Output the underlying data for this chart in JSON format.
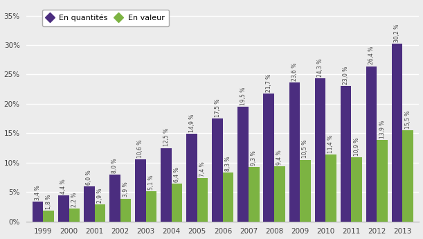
{
  "years": [
    "1999",
    "2000",
    "2001",
    "2002",
    "2003",
    "2004",
    "2005",
    "2006",
    "2007",
    "2008",
    "2009",
    "2010",
    "2011",
    "2012",
    "2013"
  ],
  "quantites": [
    3.4,
    4.4,
    6.0,
    8.0,
    10.6,
    12.5,
    14.9,
    17.5,
    19.5,
    21.7,
    23.6,
    24.3,
    23.0,
    26.4,
    30.2
  ],
  "valeur": [
    1.8,
    2.2,
    2.9,
    3.9,
    5.1,
    6.4,
    7.4,
    8.3,
    9.3,
    9.4,
    10.5,
    11.4,
    10.9,
    13.9,
    15.5
  ],
  "quantites_labels": [
    "3,4 %",
    "4,4 %",
    "6,0 %",
    "8,0 %",
    "10,6 %",
    "12,5 %",
    "14,9 %",
    "17,5 %",
    "19,5 %",
    "21,7 %",
    "23,6 %",
    "24,3 %",
    "23,0 %",
    "26,4 %",
    "30,2 %"
  ],
  "valeur_labels": [
    "1,8 %",
    "2,2 %",
    "2,9 %",
    "3,9 %",
    "5,1 %",
    "6,4 %",
    "7,4 %",
    "8,3 %",
    "9,3 %",
    "9,4 %",
    "10,5 %",
    "11,4 %",
    "10,9 %",
    "13,9 %",
    "15,5 %"
  ],
  "color_quantites": "#4B2D7F",
  "color_valeur": "#7CB342",
  "ylim": [
    0,
    37
  ],
  "yticks": [
    0,
    5,
    10,
    15,
    20,
    25,
    30,
    35
  ],
  "ytick_labels": [
    "0%",
    "5%",
    "10%",
    "15%",
    "20%",
    "25%",
    "30%",
    "35%"
  ],
  "legend_quantites": "En quantités",
  "legend_valeur": "En valeur",
  "bar_width": 0.42,
  "background_color": "#ececec",
  "plot_bg_color": "#ececec",
  "grid_color": "#ffffff",
  "label_fontsize": 5.5,
  "tick_fontsize": 7.5
}
